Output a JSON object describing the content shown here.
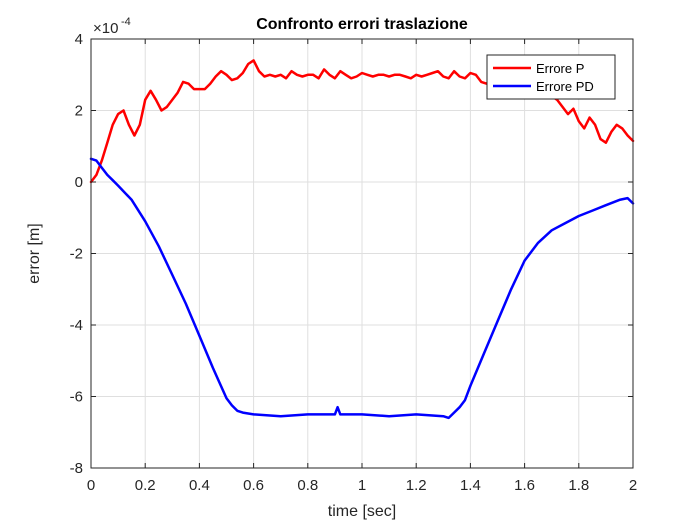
{
  "chart_data": {
    "type": "line",
    "title": "Confronto errori traslazione",
    "xlabel": "time [sec]",
    "ylabel": "error [m]",
    "y_scale_label": "×10",
    "y_scale_exponent": "-4",
    "xlim": [
      0,
      2
    ],
    "ylim": [
      -8,
      4
    ],
    "x_ticks": [
      "0",
      "0.2",
      "0.4",
      "0.6",
      "0.8",
      "1",
      "1.2",
      "1.4",
      "1.6",
      "1.8",
      "2"
    ],
    "y_ticks": [
      "4",
      "2",
      "0",
      "-2",
      "-4",
      "-6",
      "-8"
    ],
    "grid": true,
    "legend_position": "top-right",
    "series": [
      {
        "name": "Errore P",
        "color": "#ff0000",
        "x": [
          0,
          0.02,
          0.04,
          0.06,
          0.08,
          0.1,
          0.12,
          0.14,
          0.16,
          0.18,
          0.2,
          0.22,
          0.24,
          0.26,
          0.28,
          0.3,
          0.32,
          0.34,
          0.36,
          0.38,
          0.4,
          0.42,
          0.44,
          0.46,
          0.48,
          0.5,
          0.52,
          0.54,
          0.56,
          0.58,
          0.6,
          0.62,
          0.64,
          0.66,
          0.68,
          0.7,
          0.72,
          0.74,
          0.76,
          0.78,
          0.8,
          0.82,
          0.84,
          0.86,
          0.88,
          0.9,
          0.92,
          0.94,
          0.96,
          0.98,
          1.0,
          1.02,
          1.04,
          1.06,
          1.08,
          1.1,
          1.12,
          1.14,
          1.16,
          1.18,
          1.2,
          1.22,
          1.24,
          1.26,
          1.28,
          1.3,
          1.32,
          1.34,
          1.36,
          1.38,
          1.4,
          1.42,
          1.44,
          1.46,
          1.48,
          1.5,
          1.52,
          1.54,
          1.56,
          1.58,
          1.6,
          1.62,
          1.64,
          1.66,
          1.68,
          1.7,
          1.72,
          1.74,
          1.76,
          1.78,
          1.8,
          1.82,
          1.84,
          1.86,
          1.88,
          1.9,
          1.92,
          1.94,
          1.96,
          1.98,
          2.0
        ],
        "y": [
          0.0,
          0.2,
          0.6,
          1.1,
          1.6,
          1.9,
          2.0,
          1.6,
          1.3,
          1.6,
          2.3,
          2.55,
          2.3,
          2.0,
          2.1,
          2.3,
          2.5,
          2.8,
          2.75,
          2.6,
          2.6,
          2.6,
          2.75,
          2.95,
          3.1,
          3.0,
          2.85,
          2.9,
          3.05,
          3.3,
          3.4,
          3.1,
          2.95,
          3.0,
          2.95,
          3.0,
          2.9,
          3.1,
          3.0,
          2.95,
          3.0,
          3.0,
          2.9,
          3.15,
          3.0,
          2.9,
          3.1,
          3.0,
          2.9,
          2.95,
          3.05,
          3.0,
          2.95,
          3.0,
          3.0,
          2.95,
          3.0,
          3.0,
          2.95,
          2.9,
          3.0,
          2.95,
          3.0,
          3.05,
          3.1,
          2.95,
          2.9,
          3.1,
          2.95,
          2.9,
          3.05,
          3.0,
          2.8,
          2.75,
          2.9,
          2.95,
          2.7,
          2.6,
          2.85,
          2.9,
          2.7,
          2.55,
          2.75,
          2.6,
          2.45,
          2.4,
          2.3,
          2.1,
          1.9,
          2.05,
          1.7,
          1.5,
          1.8,
          1.6,
          1.2,
          1.1,
          1.4,
          1.6,
          1.5,
          1.3,
          1.15
        ]
      },
      {
        "name": "Errore PD",
        "color": "#0000ff",
        "x": [
          0,
          0.02,
          0.04,
          0.06,
          0.08,
          0.1,
          0.15,
          0.2,
          0.25,
          0.3,
          0.35,
          0.4,
          0.45,
          0.5,
          0.52,
          0.54,
          0.56,
          0.6,
          0.7,
          0.8,
          0.9,
          0.91,
          0.92,
          1.0,
          1.1,
          1.2,
          1.3,
          1.32,
          1.34,
          1.36,
          1.38,
          1.4,
          1.45,
          1.5,
          1.55,
          1.6,
          1.65,
          1.7,
          1.75,
          1.8,
          1.85,
          1.9,
          1.95,
          1.98,
          2.0
        ],
        "y": [
          0.65,
          0.6,
          0.4,
          0.2,
          0.05,
          -0.1,
          -0.5,
          -1.1,
          -1.8,
          -2.6,
          -3.4,
          -4.3,
          -5.2,
          -6.05,
          -6.25,
          -6.4,
          -6.45,
          -6.5,
          -6.55,
          -6.5,
          -6.5,
          -6.3,
          -6.5,
          -6.5,
          -6.55,
          -6.5,
          -6.55,
          -6.6,
          -6.45,
          -6.3,
          -6.1,
          -5.7,
          -4.8,
          -3.9,
          -3.0,
          -2.2,
          -1.7,
          -1.35,
          -1.15,
          -0.95,
          -0.8,
          -0.65,
          -0.5,
          -0.45,
          -0.6
        ]
      }
    ]
  }
}
